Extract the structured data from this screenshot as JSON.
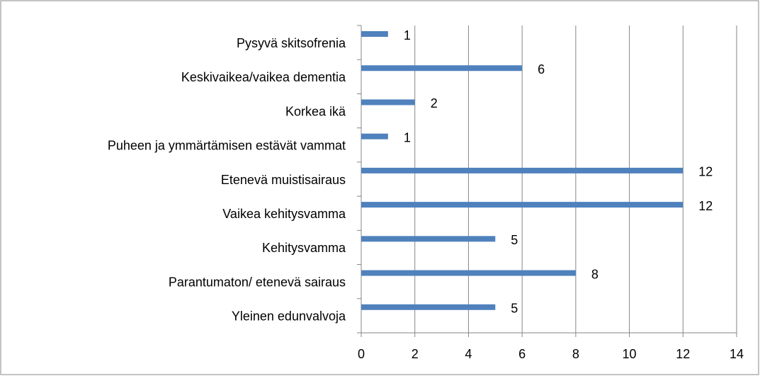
{
  "chart_data": {
    "type": "barh",
    "categories": [
      "Pysyvä skitsofrenia",
      "Keskivaikea/vaikea dementia",
      "Korkea ikä",
      "Puheen ja ymmärtämisen estävät vammat",
      "Etenevä muistisairaus",
      "Vaikea kehitysvamma",
      "Kehitysvamma",
      "Parantumaton/ etenevä sairaus",
      "Yleinen edunvalvoja"
    ],
    "values": [
      1,
      6,
      2,
      1,
      12,
      12,
      5,
      8,
      5
    ],
    "color": "#4f81bd",
    "xlim": [
      0,
      14
    ],
    "xticks": [
      0,
      2,
      4,
      6,
      8,
      10,
      12,
      14
    ],
    "grid": true
  }
}
